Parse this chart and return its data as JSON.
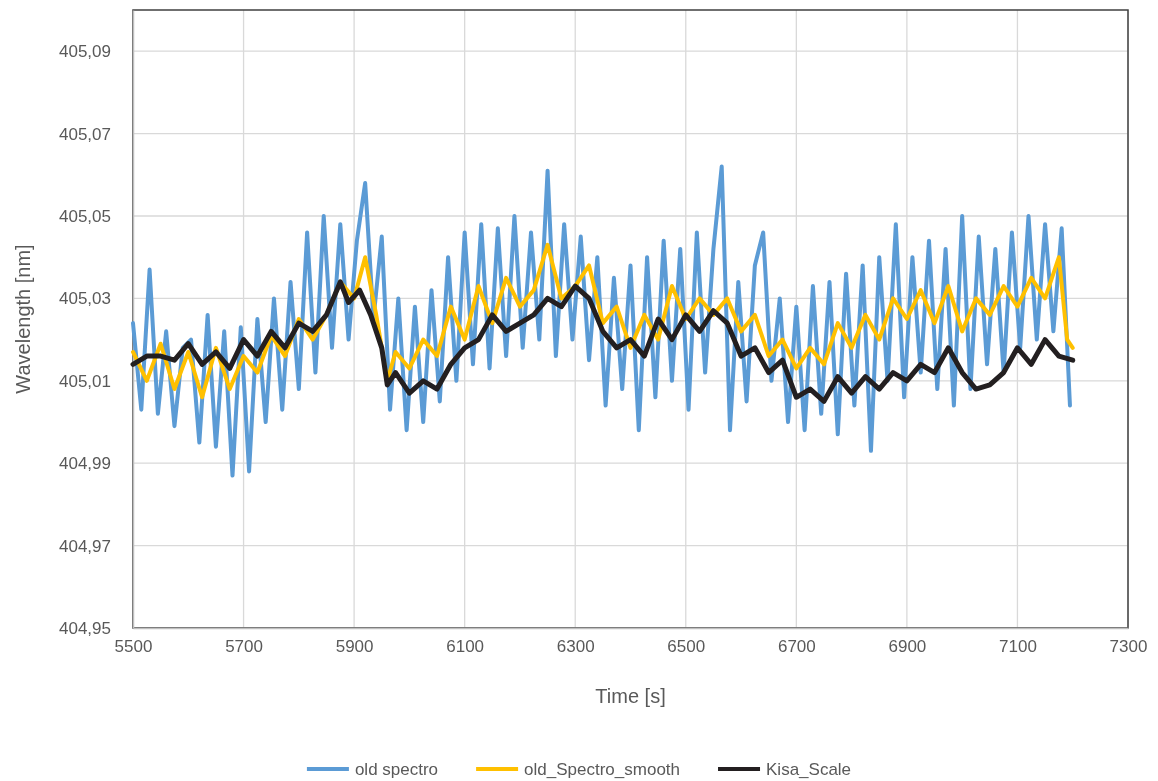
{
  "chart_data": {
    "type": "line",
    "xlabel": "Time [s]",
    "ylabel": "Wavelength  [nm]",
    "xlim": [
      5500,
      7300
    ],
    "xticks": [
      5500,
      5700,
      5900,
      6100,
      6300,
      6500,
      6700,
      6900,
      7100,
      7300
    ],
    "ylim": [
      404.95,
      405.1
    ],
    "yticks": [
      {
        "value": 404.95,
        "label": "404,95"
      },
      {
        "value": 404.97,
        "label": "404,97"
      },
      {
        "value": 404.99,
        "label": "404,99"
      },
      {
        "value": 405.01,
        "label": "405,01"
      },
      {
        "value": 405.03,
        "label": "405,03"
      },
      {
        "value": 405.05,
        "label": "405,05"
      },
      {
        "value": 405.07,
        "label": "405,07"
      },
      {
        "value": 405.09,
        "label": "405,09"
      }
    ],
    "grid": true,
    "legend": "bottom",
    "marker": "none",
    "line_style": "solid",
    "series": [
      {
        "name": "old spectro",
        "color": "#5b9bd5",
        "x": [
          5500,
          5515,
          5530,
          5545,
          5560,
          5575,
          5590,
          5605,
          5620,
          5635,
          5650,
          5665,
          5680,
          5695,
          5710,
          5725,
          5740,
          5755,
          5770,
          5785,
          5800,
          5815,
          5830,
          5845,
          5860,
          5875,
          5890,
          5905,
          5920,
          5935,
          5950,
          5965,
          5980,
          5995,
          6010,
          6025,
          6040,
          6055,
          6070,
          6085,
          6100,
          6115,
          6130,
          6145,
          6160,
          6175,
          6190,
          6205,
          6220,
          6235,
          6250,
          6265,
          6280,
          6295,
          6310,
          6325,
          6340,
          6355,
          6370,
          6385,
          6400,
          6415,
          6430,
          6445,
          6460,
          6475,
          6490,
          6505,
          6520,
          6535,
          6550,
          6565,
          6580,
          6595,
          6610,
          6625,
          6640,
          6655,
          6670,
          6685,
          6700,
          6715,
          6730,
          6745,
          6760,
          6775,
          6790,
          6805,
          6820,
          6835,
          6850,
          6865,
          6880,
          6895,
          6910,
          6925,
          6940,
          6955,
          6970,
          6985,
          7000,
          7015,
          7030,
          7045,
          7060,
          7075,
          7090,
          7105,
          7120,
          7135,
          7150,
          7165,
          7180,
          7195
        ],
        "values": [
          405.024,
          405.003,
          405.037,
          405.002,
          405.022,
          404.999,
          405.018,
          405.02,
          404.995,
          405.026,
          404.994,
          405.022,
          404.987,
          405.023,
          404.988,
          405.025,
          405.0,
          405.03,
          405.003,
          405.034,
          405.008,
          405.046,
          405.012,
          405.05,
          405.018,
          405.048,
          405.02,
          405.044,
          405.058,
          405.025,
          405.045,
          405.003,
          405.03,
          404.998,
          405.028,
          405.0,
          405.032,
          405.005,
          405.04,
          405.01,
          405.046,
          405.014,
          405.048,
          405.013,
          405.047,
          405.016,
          405.05,
          405.018,
          405.046,
          405.02,
          405.061,
          405.016,
          405.048,
          405.02,
          405.045,
          405.015,
          405.04,
          405.004,
          405.035,
          405.008,
          405.038,
          404.998,
          405.04,
          405.006,
          405.044,
          405.01,
          405.042,
          405.003,
          405.046,
          405.012,
          405.042,
          405.062,
          404.998,
          405.034,
          405.005,
          405.038,
          405.046,
          405.01,
          405.03,
          405.0,
          405.028,
          404.998,
          405.033,
          405.002,
          405.034,
          404.997,
          405.036,
          405.004,
          405.038,
          404.993,
          405.04,
          405.01,
          405.048,
          405.006,
          405.04,
          405.012,
          405.044,
          405.008,
          405.042,
          405.004,
          405.05,
          405.008,
          405.045,
          405.014,
          405.042,
          405.012,
          405.046,
          405.018,
          405.05,
          405.02,
          405.048,
          405.022,
          405.047,
          405.004
        ]
      },
      {
        "name": "old_Spectro_smooth",
        "color": "#ffc000",
        "x": [
          5500,
          5525,
          5550,
          5575,
          5600,
          5625,
          5650,
          5675,
          5700,
          5725,
          5750,
          5775,
          5800,
          5825,
          5850,
          5875,
          5900,
          5920,
          5940,
          5960,
          5975,
          6000,
          6025,
          6050,
          6075,
          6100,
          6125,
          6150,
          6175,
          6200,
          6225,
          6250,
          6275,
          6300,
          6325,
          6350,
          6375,
          6400,
          6425,
          6450,
          6475,
          6500,
          6525,
          6550,
          6575,
          6600,
          6625,
          6650,
          6675,
          6700,
          6725,
          6750,
          6775,
          6800,
          6825,
          6850,
          6875,
          6900,
          6925,
          6950,
          6975,
          7000,
          7025,
          7050,
          7075,
          7100,
          7125,
          7150,
          7175,
          7190,
          7200
        ],
        "values": [
          405.017,
          405.01,
          405.019,
          405.008,
          405.017,
          405.006,
          405.018,
          405.008,
          405.016,
          405.012,
          405.021,
          405.016,
          405.025,
          405.02,
          405.026,
          405.034,
          405.03,
          405.04,
          405.026,
          405.01,
          405.017,
          405.013,
          405.02,
          405.016,
          405.028,
          405.02,
          405.033,
          405.024,
          405.035,
          405.028,
          405.032,
          405.043,
          405.03,
          405.033,
          405.038,
          405.024,
          405.028,
          405.018,
          405.026,
          405.02,
          405.033,
          405.025,
          405.03,
          405.026,
          405.03,
          405.022,
          405.026,
          405.016,
          405.02,
          405.013,
          405.018,
          405.014,
          405.024,
          405.018,
          405.026,
          405.02,
          405.03,
          405.025,
          405.032,
          405.024,
          405.033,
          405.022,
          405.03,
          405.026,
          405.033,
          405.028,
          405.035,
          405.03,
          405.04,
          405.02,
          405.018
        ]
      },
      {
        "name": "Kisa_Scale",
        "color": "#231f20",
        "x": [
          5500,
          5525,
          5550,
          5575,
          5600,
          5625,
          5650,
          5675,
          5700,
          5725,
          5750,
          5775,
          5800,
          5825,
          5850,
          5875,
          5890,
          5910,
          5930,
          5950,
          5960,
          5975,
          6000,
          6025,
          6050,
          6075,
          6100,
          6125,
          6150,
          6175,
          6200,
          6225,
          6250,
          6275,
          6300,
          6325,
          6350,
          6375,
          6400,
          6425,
          6450,
          6475,
          6500,
          6525,
          6550,
          6575,
          6600,
          6625,
          6650,
          6675,
          6700,
          6725,
          6750,
          6775,
          6800,
          6825,
          6850,
          6875,
          6900,
          6925,
          6950,
          6975,
          7000,
          7025,
          7050,
          7075,
          7100,
          7125,
          7150,
          7175,
          7200
        ],
        "values": [
          405.014,
          405.016,
          405.016,
          405.015,
          405.019,
          405.014,
          405.017,
          405.013,
          405.02,
          405.016,
          405.022,
          405.018,
          405.024,
          405.022,
          405.026,
          405.034,
          405.029,
          405.032,
          405.026,
          405.018,
          405.009,
          405.012,
          405.007,
          405.01,
          405.008,
          405.014,
          405.018,
          405.02,
          405.026,
          405.022,
          405.024,
          405.026,
          405.03,
          405.028,
          405.033,
          405.03,
          405.022,
          405.018,
          405.02,
          405.016,
          405.025,
          405.02,
          405.026,
          405.022,
          405.027,
          405.024,
          405.016,
          405.018,
          405.012,
          405.015,
          405.006,
          405.008,
          405.005,
          405.011,
          405.007,
          405.011,
          405.008,
          405.012,
          405.01,
          405.014,
          405.012,
          405.018,
          405.012,
          405.008,
          405.009,
          405.012,
          405.018,
          405.014,
          405.02,
          405.016,
          405.015
        ]
      }
    ]
  }
}
